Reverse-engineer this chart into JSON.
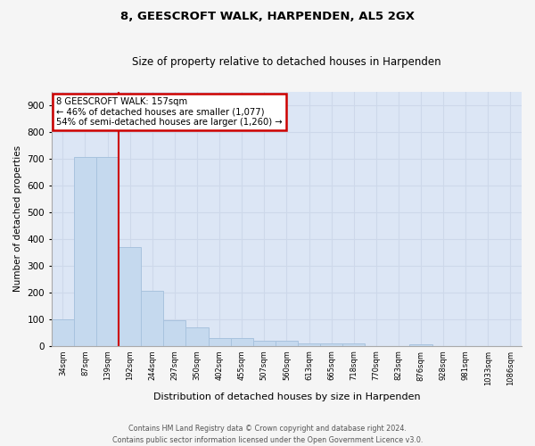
{
  "title1": "8, GEESCROFT WALK, HARPENDEN, AL5 2GX",
  "title2": "Size of property relative to detached houses in Harpenden",
  "xlabel": "Distribution of detached houses by size in Harpenden",
  "ylabel": "Number of detached properties",
  "footnote": "Contains HM Land Registry data © Crown copyright and database right 2024.\nContains public sector information licensed under the Open Government Licence v3.0.",
  "categories": [
    "34sqm",
    "87sqm",
    "139sqm",
    "192sqm",
    "244sqm",
    "297sqm",
    "350sqm",
    "402sqm",
    "455sqm",
    "507sqm",
    "560sqm",
    "613sqm",
    "665sqm",
    "718sqm",
    "770sqm",
    "823sqm",
    "876sqm",
    "928sqm",
    "981sqm",
    "1033sqm",
    "1086sqm"
  ],
  "values": [
    100,
    707,
    707,
    370,
    205,
    95,
    70,
    30,
    30,
    18,
    18,
    10,
    8,
    8,
    0,
    0,
    5,
    0,
    0,
    0,
    0
  ],
  "bar_color": "#c5d9ee",
  "bar_edge_color": "#a8c3de",
  "property_line_x": 2.5,
  "annotation_line1": "8 GEESCROFT WALK: 157sqm",
  "annotation_line2": "← 46% of detached houses are smaller (1,077)",
  "annotation_line3": "54% of semi-detached houses are larger (1,260) →",
  "annotation_box_color": "#ffffff",
  "annotation_border_color": "#cc0000",
  "vline_color": "#cc0000",
  "grid_color": "#cdd8ea",
  "background_color": "#dce6f5",
  "fig_background_color": "#f5f5f5",
  "ylim": [
    0,
    950
  ],
  "yticks": [
    0,
    100,
    200,
    300,
    400,
    500,
    600,
    700,
    800,
    900
  ]
}
